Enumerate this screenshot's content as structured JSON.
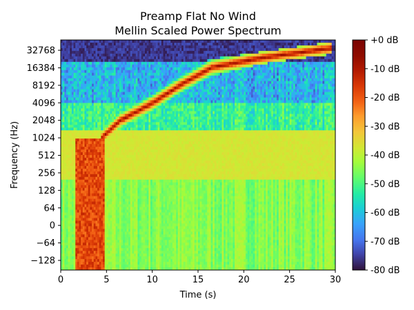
{
  "chart_data": {
    "type": "heatmap",
    "title": "Preamp Flat No Wind",
    "subtitle": "Mellin Scaled Power Spectrum",
    "xlabel": "Time (s)",
    "ylabel": "Frequency (Hz)",
    "xlim": [
      0,
      30
    ],
    "x_ticks": [
      0,
      5,
      10,
      15,
      20,
      25,
      30
    ],
    "y_ticks": [
      "32768",
      "16384",
      "8192",
      "4096",
      "2048",
      "1024",
      "512",
      "256",
      "128",
      "64",
      "0",
      "−64",
      "−128"
    ],
    "colorbar": {
      "range_db": [
        -80,
        0
      ],
      "ticks": [
        "+0 dB",
        "-10 dB",
        "-20 dB",
        "-30 dB",
        "-40 dB",
        "-50 dB",
        "-60 dB",
        "-70 dB",
        "-80 dB"
      ],
      "tick_values": [
        0,
        -10,
        -20,
        -30,
        -40,
        -50,
        -60,
        -70,
        -80
      ],
      "colormap": "turbo"
    },
    "features": {
      "chirp_track": [
        {
          "t": 4.5,
          "band": "1024"
        },
        {
          "t": 6.5,
          "band": "2048"
        },
        {
          "t": 10,
          "band": "4096"
        },
        {
          "t": 13,
          "band": "8192"
        },
        {
          "t": 16.5,
          "band": "16384"
        },
        {
          "t": 22,
          "band": "24000"
        },
        {
          "t": 29.5,
          "band": "32768"
        }
      ],
      "broadband_burst": {
        "t_start": 1.5,
        "t_end": 4.8,
        "level_db": -15
      },
      "low_band_level_db": -45,
      "mid_band_level_db": -37,
      "high_band_level_db": -65
    }
  }
}
